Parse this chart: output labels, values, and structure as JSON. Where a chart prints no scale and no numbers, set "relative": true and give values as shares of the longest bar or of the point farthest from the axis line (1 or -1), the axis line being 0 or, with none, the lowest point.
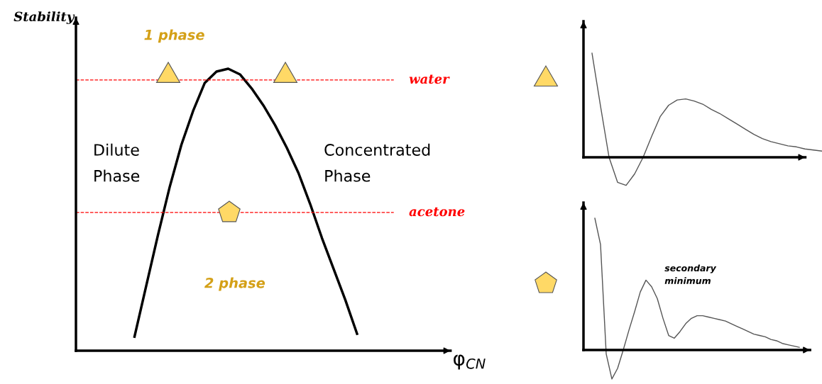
{
  "chart_data": [
    {
      "type": "line",
      "relative": true,
      "xlabel": "φ$_{CN}$",
      "ylabel": "Stability",
      "categories": [
        null,
        null,
        null,
        null,
        null,
        null,
        null,
        null,
        null,
        null,
        null,
        null,
        null,
        null,
        null,
        null,
        null,
        null,
        null,
        null
      ],
      "series": [
        {
          "color": "#000000",
          "values": [
            0.05,
            0.23,
            0.41,
            0.58,
            0.73,
            0.85,
            0.95,
            0.99,
            1.0,
            0.98,
            0.93,
            0.87,
            0.8,
            0.72,
            0.63,
            0.52,
            0.4,
            0.29,
            0.18,
            0.06
          ]
        }
      ],
      "ref_lines": [
        {
          "axis": "y",
          "value": 0.96,
          "label": "water",
          "color": "#ff0000",
          "line_style": "dashed"
        },
        {
          "axis": "y",
          "value": 0.49,
          "label": "acetone",
          "color": "#ff0000",
          "line_style": "dashed"
        }
      ],
      "annotations": [
        "1 phase",
        "2 phase",
        "Dilute\nPhase",
        "Concentrated\nPhase"
      ]
    },
    {
      "type": "line",
      "relative": true,
      "categories": [
        null,
        null,
        null,
        null,
        null,
        null,
        null,
        null,
        null,
        null,
        null,
        null,
        null,
        null,
        null,
        null,
        null,
        null,
        null,
        null,
        null,
        null,
        null,
        null,
        null,
        null,
        null,
        null
      ],
      "series": [
        {
          "color": "#555555",
          "values": [
            1.0,
            0.49,
            0,
            -0.24,
            -0.27,
            -0.16,
            0,
            0.2,
            0.39,
            0.5,
            0.55,
            0.56,
            0.54,
            0.51,
            0.46,
            0.42,
            0.37,
            0.32,
            0.27,
            0.22,
            0.18,
            0.15,
            0.13,
            0.11,
            0.1,
            0.08,
            0.07,
            0.06
          ]
        }
      ]
    },
    {
      "type": "line",
      "relative": true,
      "categories": [
        null,
        null,
        null,
        null,
        null,
        null,
        null,
        null,
        null,
        null,
        null,
        null,
        null,
        null,
        null,
        null,
        null,
        null,
        null,
        null,
        null,
        null,
        null,
        null,
        null,
        null,
        null,
        null,
        null,
        null,
        null,
        null,
        null,
        null,
        null,
        null,
        null
      ],
      "series": [
        {
          "color": "#555555",
          "values": [
            1.0,
            0.8,
            -0.03,
            -0.22,
            -0.14,
            0.0,
            0.15,
            0.29,
            0.44,
            0.53,
            0.48,
            0.39,
            0.24,
            0.11,
            0.09,
            0.14,
            0.2,
            0.24,
            0.26,
            0.26,
            0.25,
            0.24,
            0.23,
            0.22,
            0.2,
            0.18,
            0.16,
            0.14,
            0.12,
            0.11,
            0.1,
            0.08,
            0.07,
            0.05,
            0.04,
            0.03,
            0.02
          ]
        }
      ],
      "annotations": [
        "secondary\nminimum"
      ]
    }
  ]
}
